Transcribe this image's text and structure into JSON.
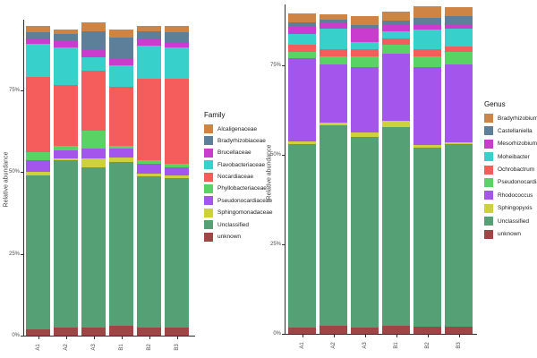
{
  "figure": {
    "background": "#ffffff"
  },
  "chart_data": [
    {
      "type": "bar",
      "stacked": true,
      "title": "",
      "xlabel": "",
      "ylabel": "Relative abundance",
      "legend_title": "Family",
      "legend_position": "right",
      "grid": false,
      "unit": "percent",
      "ylim": [
        0,
        100
      ],
      "y_ticks": [
        {
          "label": "0%",
          "value": 0
        },
        {
          "label": "25%",
          "value": 25
        },
        {
          "label": "50%",
          "value": 50
        },
        {
          "label": "75%",
          "value": 75
        }
      ],
      "categories": [
        "A1",
        "A2",
        "A3",
        "B1",
        "B2",
        "B3"
      ],
      "stack_order": "reverse-of-legend (unknown at bottom, Alcaligenaceae on top)",
      "series": [
        {
          "name": "Alcaligenaceae",
          "color": "#CE8445",
          "values": [
            2,
            1.5,
            2.5,
            2.5,
            1.5,
            2
          ]
        },
        {
          "name": "Bradyrhizobiaceae",
          "color": "#5D7F9A",
          "values": [
            2,
            2,
            5.5,
            6.5,
            2.5,
            3
          ]
        },
        {
          "name": "Brucellaceae",
          "color": "#C93CCE",
          "values": [
            1.5,
            2,
            2.5,
            2,
            2,
            1.5
          ]
        },
        {
          "name": "Flavobacteriaceae",
          "color": "#38D0CB",
          "values": [
            10,
            11.5,
            4,
            6.5,
            10,
            9.5
          ]
        },
        {
          "name": "Nocardiaceae",
          "color": "#F55C5C",
          "values": [
            23,
            18.5,
            18.5,
            18,
            25,
            26
          ]
        },
        {
          "name": "Phyllobacteriaceae",
          "color": "#59D363",
          "values": [
            2.5,
            1.5,
            5.5,
            1,
            1,
            1
          ]
        },
        {
          "name": "Pseudonocardiaceae",
          "color": "#A455EC",
          "values": [
            3.5,
            2.5,
            3,
            2.5,
            3,
            2.5
          ]
        },
        {
          "name": "Sphingomonadaceae",
          "color": "#CDD13C",
          "values": [
            1,
            0.5,
            2.5,
            1.5,
            1,
            1
          ]
        },
        {
          "name": "Unclassified",
          "color": "#56A076",
          "values": [
            47,
            51,
            49,
            50,
            46,
            45.5
          ]
        },
        {
          "name": "unknown",
          "color": "#A04545",
          "values": [
            2,
            2.5,
            2.5,
            3,
            2.5,
            2.5
          ]
        }
      ]
    },
    {
      "type": "bar",
      "stacked": true,
      "title": "",
      "xlabel": "",
      "ylabel": "Relative abundance",
      "legend_title": "Genus",
      "legend_position": "right",
      "grid": false,
      "unit": "percent",
      "ylim": [
        0,
        100
      ],
      "y_ticks": [
        {
          "label": "0%",
          "value": 0
        },
        {
          "label": "25%",
          "value": 25
        },
        {
          "label": "50%",
          "value": 50
        },
        {
          "label": "75%",
          "value": 75
        }
      ],
      "categories": [
        "A1",
        "A2",
        "A3",
        "B1",
        "B2",
        "B3"
      ],
      "stack_order": "reverse-of-legend (unknown at bottom, Bradyrhizobium on top)",
      "series": [
        {
          "name": "Bradyrhizobium",
          "color": "#CE8445",
          "values": [
            2.5,
            1.5,
            2.5,
            2.5,
            3.2,
            2.5
          ]
        },
        {
          "name": "Castellaniella",
          "color": "#5D7F9A",
          "values": [
            1.2,
            1,
            1,
            1.2,
            2,
            2.3
          ]
        },
        {
          "name": "Mesorhizobium",
          "color": "#C93CCE",
          "values": [
            2,
            1.5,
            3.8,
            1.8,
            1.3,
            1.2
          ]
        },
        {
          "name": "Moheibacter",
          "color": "#38D0CB",
          "values": [
            3,
            5.8,
            2,
            2,
            5.5,
            5
          ]
        },
        {
          "name": "Ochrobactrum",
          "color": "#F55C5C",
          "values": [
            2,
            2,
            2,
            1.7,
            2,
            1.5
          ]
        },
        {
          "name": "Pseudonocardia",
          "color": "#59D363",
          "values": [
            1.8,
            2.2,
            3,
            2.5,
            3,
            3.5
          ]
        },
        {
          "name": "Rhodococcus",
          "color": "#A455EC",
          "values": [
            23.2,
            16.3,
            18.2,
            18.8,
            21.7,
            21.8
          ]
        },
        {
          "name": "Sphingopyxis",
          "color": "#CDD13C",
          "values": [
            0.8,
            0.7,
            1.3,
            1.7,
            0.8,
            0.5
          ]
        },
        {
          "name": "Unclassified",
          "color": "#56A076",
          "values": [
            51.2,
            56,
            53.2,
            55.5,
            50,
            51
          ]
        },
        {
          "name": "unknown",
          "color": "#A04545",
          "values": [
            1.8,
            2.3,
            1.8,
            2.3,
            2,
            2
          ]
        }
      ]
    }
  ]
}
